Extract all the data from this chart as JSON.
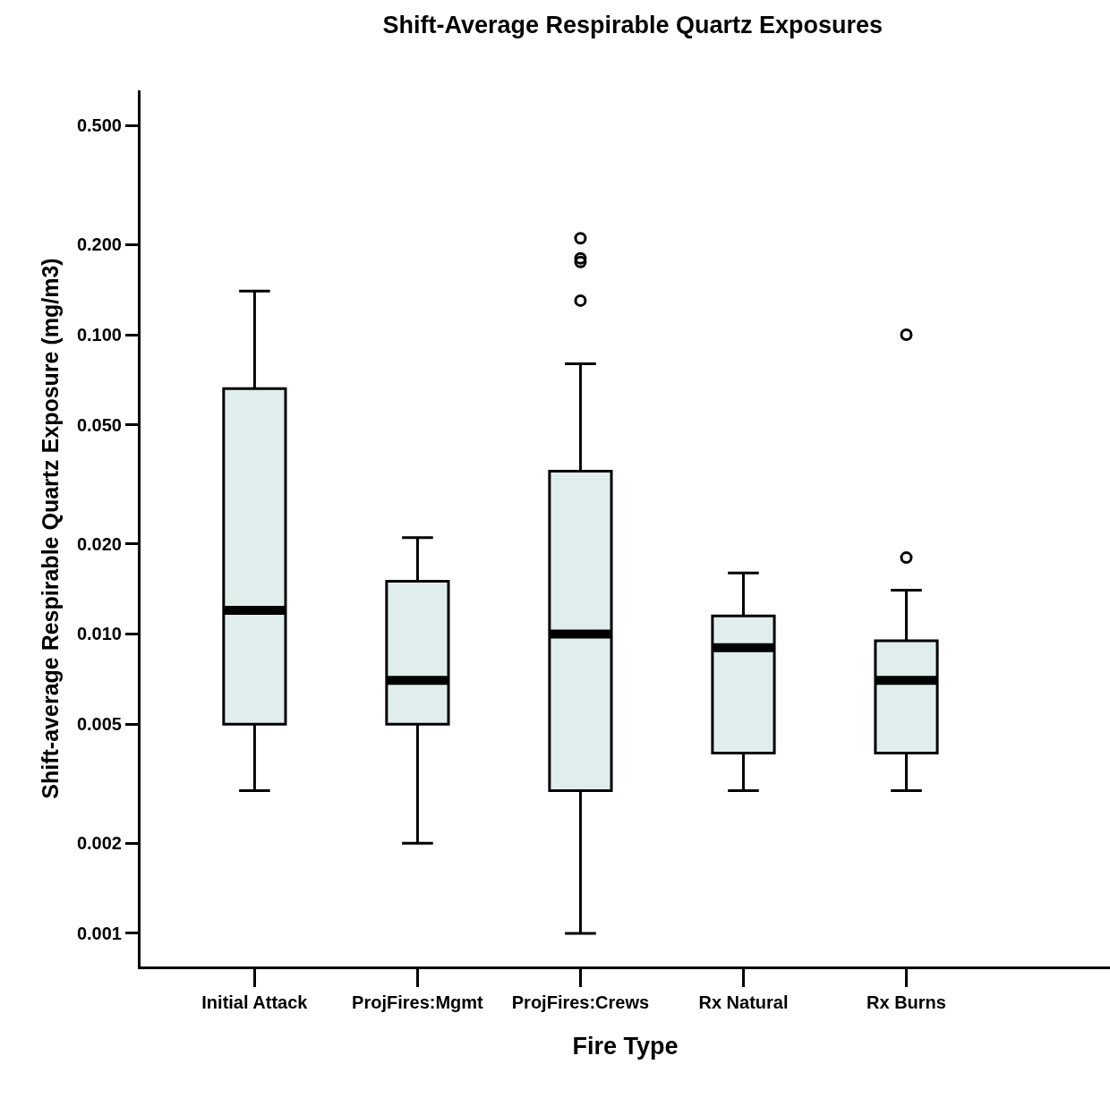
{
  "chart_data": {
    "type": "box",
    "title": "Shift-Average Respirable Quartz Exposures",
    "xlabel": "Fire Type",
    "ylabel": "Shift-average Respirable Quartz Exposure (mg/m3)",
    "categories": [
      "Initial Attack",
      "ProjFires:Mgmt",
      "ProjFires:Crews",
      "Rx Natural",
      "Rx Burns"
    ],
    "color": "#e0eded",
    "boxes": [
      {
        "low": 0.003,
        "q1": 0.005,
        "median": 0.012,
        "q3": 0.066,
        "high": 0.14
      },
      {
        "low": 0.002,
        "q1": 0.005,
        "median": 0.007,
        "q3": 0.015,
        "high": 0.021
      },
      {
        "low": 0.001,
        "q1": 0.003,
        "median": 0.01,
        "q3": 0.035,
        "high": 0.08,
        "outliers": [
          0.21,
          0.18,
          0.175,
          0.13
        ]
      },
      {
        "low": 0.003,
        "q1": 0.004,
        "median": 0.009,
        "q3": 0.0115,
        "high": 0.016
      },
      {
        "low": 0.003,
        "q1": 0.004,
        "median": 0.007,
        "q3": 0.0095,
        "high": 0.014,
        "outliers": [
          0.1,
          0.018
        ]
      }
    ],
    "log": "y",
    "ylim": [
      0.000775,
      0.655
    ],
    "yticks": [
      {
        "value": 0.5,
        "label": "0.500"
      },
      {
        "value": 0.2,
        "label": "0.200"
      },
      {
        "value": 0.1,
        "label": "0.100"
      },
      {
        "value": 0.05,
        "label": "0.050"
      },
      {
        "value": 0.02,
        "label": "0.020"
      },
      {
        "value": 0.01,
        "label": "0.010"
      },
      {
        "value": 0.005,
        "label": "0.005"
      },
      {
        "value": 0.002,
        "label": "0.002"
      },
      {
        "value": 0.001,
        "label": "0.001"
      }
    ],
    "marker": "circle",
    "grid": false
  }
}
